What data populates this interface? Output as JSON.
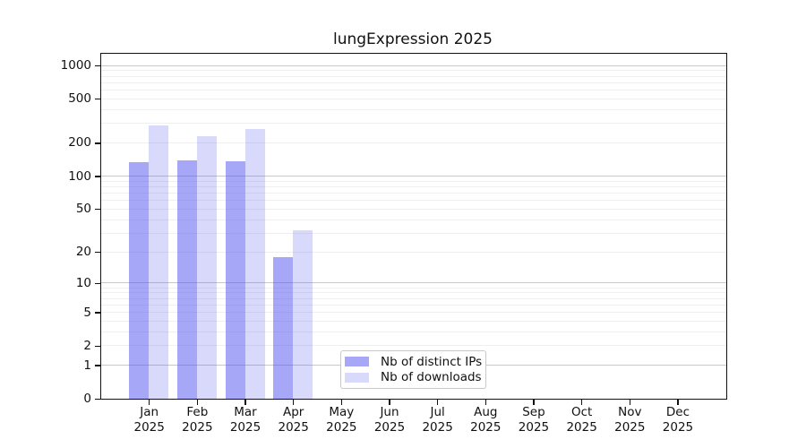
{
  "figure": {
    "background": "#ffffff",
    "spine_color": "#111111"
  },
  "chart_data": {
    "type": "bar",
    "title": "lungExpression 2025",
    "year_label": "2025",
    "categories": [
      "Jan",
      "Feb",
      "Mar",
      "Apr",
      "May",
      "Jun",
      "Jul",
      "Aug",
      "Sep",
      "Oct",
      "Nov",
      "Dec"
    ],
    "series": [
      {
        "name": "Nb of distinct IPs",
        "color": "rgba(80,80,240,0.5)",
        "values": [
          134,
          140,
          136,
          18,
          0,
          0,
          0,
          0,
          0,
          0,
          0,
          0
        ]
      },
      {
        "name": "Nb of downloads",
        "color": "rgba(80,80,240,0.22)",
        "values": [
          287,
          230,
          266,
          32,
          0,
          0,
          0,
          0,
          0,
          0,
          0,
          0
        ]
      }
    ],
    "y_axis": {
      "scale": "log1p",
      "tick_values": [
        0,
        1,
        2,
        5,
        10,
        20,
        50,
        100,
        200,
        500,
        1000
      ],
      "tick_labels": [
        "0",
        "1",
        "2",
        "5",
        "10",
        "20",
        "50",
        "100",
        "200",
        "500",
        "1000"
      ],
      "max": 1275,
      "major_gridlines_at": [
        1,
        10,
        100,
        1000
      ],
      "minor_gridline_multipliers": [
        2,
        3,
        4,
        5,
        6,
        7,
        8,
        9
      ],
      "major_grid_color": "#c8c8c8",
      "minor_grid_color": "#efefef"
    },
    "x_axis": {
      "tick_label_line2": "2025"
    },
    "legend": {
      "position": "lower center-left inside plot",
      "entries": [
        "Nb of distinct IPs",
        "Nb of downloads"
      ]
    }
  }
}
